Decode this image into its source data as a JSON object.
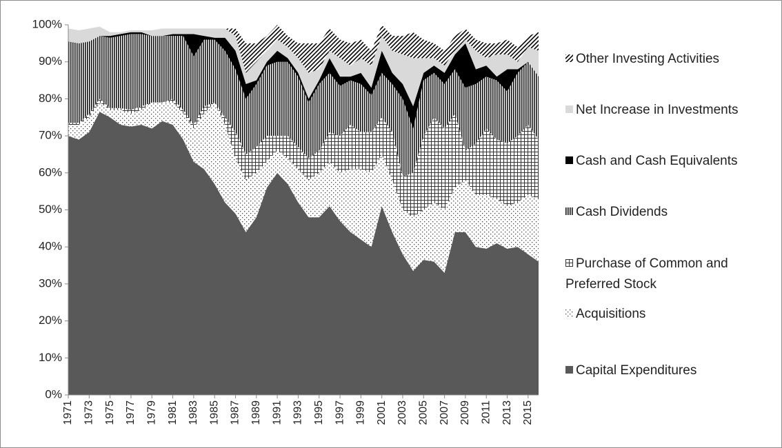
{
  "chart_data": {
    "type": "stacked-area",
    "x": [
      1971,
      1972,
      1973,
      1974,
      1975,
      1976,
      1977,
      1978,
      1979,
      1980,
      1981,
      1982,
      1983,
      1984,
      1985,
      1986,
      1987,
      1988,
      1989,
      1990,
      1991,
      1992,
      1993,
      1994,
      1995,
      1996,
      1997,
      1998,
      1999,
      2000,
      2001,
      2002,
      2003,
      2004,
      2005,
      2006,
      2007,
      2008,
      2009,
      2010,
      2011,
      2012,
      2013,
      2014,
      2015,
      2016
    ],
    "xlim": [
      1971,
      2016
    ],
    "xticks": [
      1971,
      1973,
      1975,
      1977,
      1979,
      1981,
      1983,
      1985,
      1987,
      1989,
      1991,
      1993,
      1995,
      1997,
      1999,
      2001,
      2003,
      2005,
      2007,
      2009,
      2011,
      2013,
      2015
    ],
    "ylim": [
      0,
      100
    ],
    "yticks": [
      {
        "value": 0,
        "label": "0%"
      },
      {
        "value": 10,
        "label": "10%"
      },
      {
        "value": 20,
        "label": "20%"
      },
      {
        "value": 30,
        "label": "30%"
      },
      {
        "value": 40,
        "label": "40%"
      },
      {
        "value": 50,
        "label": "50%"
      },
      {
        "value": 60,
        "label": "60%"
      },
      {
        "value": 70,
        "label": "70%"
      },
      {
        "value": 80,
        "label": "80%"
      },
      {
        "value": 90,
        "label": "90%"
      },
      {
        "value": 100,
        "label": "100%"
      }
    ],
    "series": [
      {
        "name": "Capital Expenditures",
        "color": "#595959",
        "pattern": "solid",
        "values": [
          70,
          69,
          71,
          76.5,
          75,
          73,
          72.5,
          73,
          72,
          74,
          73,
          69,
          63,
          61,
          57,
          52,
          49,
          44,
          48,
          56,
          60,
          57,
          52,
          48,
          48,
          51,
          47,
          44,
          42,
          40,
          51,
          44,
          38,
          33.5,
          36.5,
          36,
          33,
          44,
          44,
          40,
          39.5,
          41,
          39.5,
          40,
          38,
          36
        ]
      },
      {
        "name": "Acquisitions",
        "color": "#444444",
        "pattern": "dots",
        "values": [
          3,
          4,
          4,
          2.5,
          2,
          4,
          3.5,
          4,
          7,
          5,
          6,
          7,
          9,
          15,
          22,
          21,
          15,
          14,
          12,
          7,
          6,
          7,
          9,
          10,
          12,
          12,
          13,
          17,
          19,
          20,
          14,
          14,
          12,
          14.5,
          13.5,
          16,
          17,
          12,
          14,
          14,
          14.5,
          12,
          11.5,
          12,
          16,
          17
        ]
      },
      {
        "name": "Purchase of Common and Preferred Stock",
        "color": "#333333",
        "pattern": "grid",
        "values": [
          0.5,
          0.5,
          1,
          1,
          0.5,
          0.5,
          1,
          1,
          0,
          0,
          1,
          1,
          1,
          2,
          0,
          2,
          7,
          7,
          7,
          7,
          4,
          6,
          6,
          6,
          6,
          8,
          10,
          12,
          10,
          11,
          10,
          13,
          9,
          12,
          20,
          23,
          22,
          20,
          8,
          14,
          18,
          16,
          17,
          18,
          19,
          16
        ]
      },
      {
        "name": "Cash Dividends",
        "color": "#111111",
        "pattern": "vertical",
        "values": [
          22,
          21.5,
          19.5,
          17,
          19,
          19.5,
          20.5,
          19.5,
          18,
          18,
          17,
          20,
          18.5,
          18,
          17,
          18,
          17,
          15,
          17,
          19,
          20,
          20,
          19,
          15,
          18,
          16,
          13.5,
          12,
          13,
          10,
          12,
          13,
          21,
          12,
          15,
          12,
          12,
          12,
          17,
          16,
          14,
          16,
          14,
          17,
          17,
          17
        ]
      },
      {
        "name": "Cash and Cash Equivalents",
        "color": "#000000",
        "pattern": "solid",
        "values": [
          0,
          0,
          0,
          0,
          0.5,
          0.5,
          0.5,
          0.5,
          0,
          0,
          0.5,
          0.5,
          6,
          1,
          0.5,
          3.5,
          5,
          4,
          1,
          1,
          3,
          1,
          1,
          1,
          1,
          4,
          2.5,
          1,
          3,
          2,
          6,
          3,
          4,
          6,
          2,
          2,
          3,
          4,
          12,
          4,
          3,
          1,
          6,
          1,
          0,
          0
        ]
      },
      {
        "name": "Net Increase in Investments",
        "color": "#d9d9d9",
        "pattern": "solid",
        "values": [
          3.5,
          3.5,
          3.5,
          2.5,
          1,
          0.5,
          0.5,
          0.5,
          1.5,
          2,
          1.5,
          1.5,
          1.5,
          2,
          2.5,
          2.5,
          4,
          3,
          5,
          3,
          3,
          3,
          4,
          7,
          3,
          2,
          5,
          3,
          4,
          6,
          4,
          6,
          8,
          13,
          4,
          2,
          2,
          1,
          1,
          5,
          2,
          6,
          4,
          2,
          4,
          7
        ]
      },
      {
        "name": "Other Investing Activities",
        "color": "#000000",
        "pattern": "diagonal",
        "values": [
          0,
          0,
          0,
          0,
          0,
          0,
          0,
          0,
          0,
          0,
          0,
          0,
          0,
          0,
          0,
          0,
          2,
          8,
          5,
          4,
          4,
          3,
          4,
          8,
          7,
          6,
          5,
          6,
          5,
          4,
          3,
          4,
          5,
          7,
          5,
          4,
          4,
          4,
          3,
          3,
          4,
          3,
          4,
          4,
          3,
          5
        ]
      }
    ]
  }
}
